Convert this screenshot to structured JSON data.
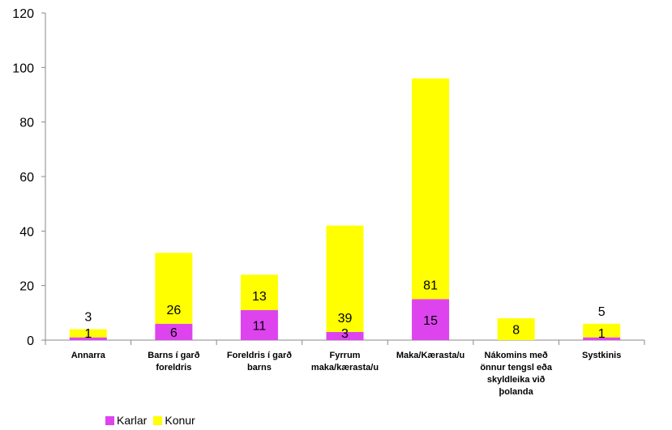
{
  "chart_data": {
    "type": "bar",
    "stacked": true,
    "categories": [
      [
        "Annarra"
      ],
      [
        "Barns í garð",
        "foreldris"
      ],
      [
        "Foreldris í garð",
        "barns"
      ],
      [
        "Fyrrum",
        "maka/kærasta/u"
      ],
      [
        "Maka/Kærasta/u"
      ],
      [
        "Nákomins með",
        "önnur tengsl eða",
        "skyldleika við",
        "þolanda"
      ],
      [
        "Systkinis"
      ]
    ],
    "series": [
      {
        "name": "Karlar",
        "color": "#dd44ee",
        "values": [
          1,
          6,
          11,
          3,
          15,
          0,
          1
        ],
        "labels": [
          "1",
          "6",
          "11",
          "3",
          "15",
          "",
          "1"
        ]
      },
      {
        "name": "Konur",
        "color": "#ffff00",
        "values": [
          3,
          26,
          13,
          39,
          81,
          8,
          5
        ],
        "labels": [
          "3",
          "26",
          "13",
          "39",
          "81",
          "8",
          "5"
        ]
      }
    ],
    "ylim": [
      0,
      120
    ],
    "yticks": [
      "0",
      "20",
      "40",
      "60",
      "80",
      "100",
      "120"
    ],
    "legend_position": "bottom-left",
    "grid": false
  }
}
